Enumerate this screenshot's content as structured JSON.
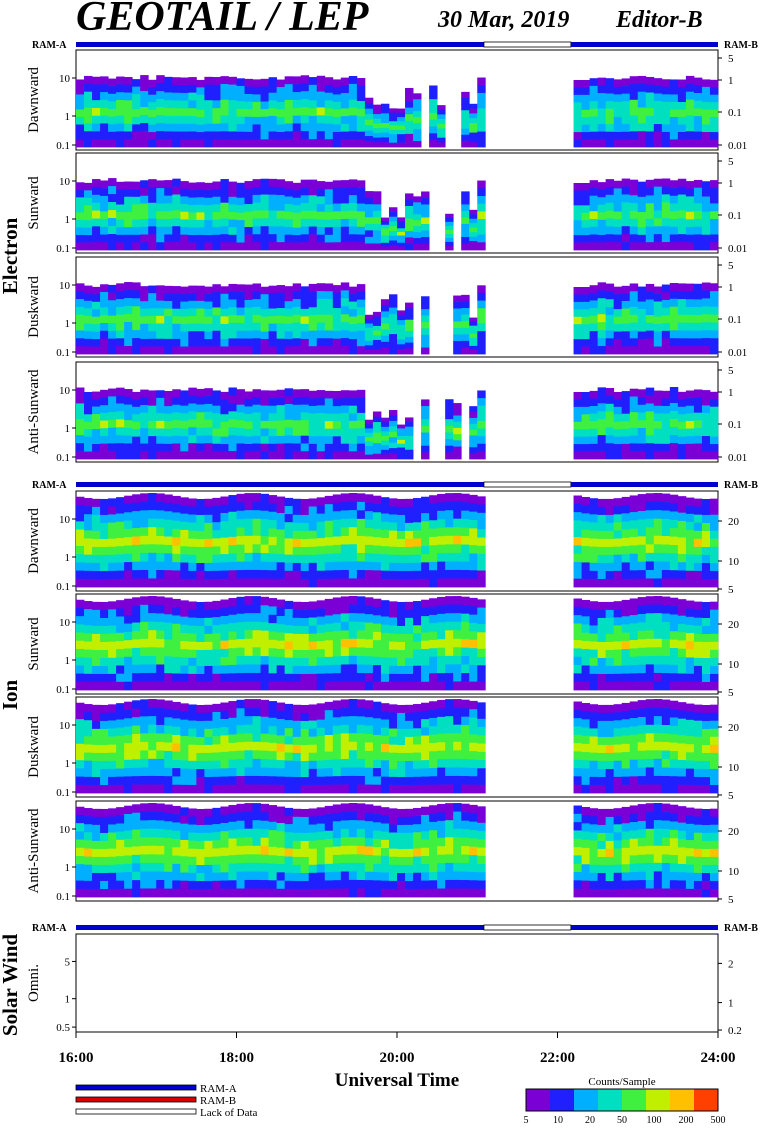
{
  "header": {
    "title": "GEOTAIL / LEP",
    "date": "30 Mar, 2019",
    "editor": "Editor-B"
  },
  "ram": {
    "left": "RAM-A",
    "right": "RAM-B"
  },
  "groups": {
    "electron": "Electron",
    "ion": "Ion",
    "solar": "Solar Wind"
  },
  "colors": {
    "ram_a": "#0000cc",
    "ram_b": "#dd0000",
    "spectro": [
      "#7a00d6",
      "#2020ff",
      "#00b0ff",
      "#00e0c0",
      "#40f040",
      "#c0f000",
      "#ffc000",
      "#ff4000"
    ]
  },
  "chart_data": {
    "type": "heatmap",
    "time_start": "16:00",
    "time_end": "24:00",
    "xlabel": "Universal Time",
    "x_ticks": [
      "16:00",
      "18:00",
      "20:00",
      "22:00",
      "24:00"
    ],
    "data_gap": [
      "21:05",
      "22:10"
    ],
    "panels": [
      {
        "group": "electron",
        "label": "Dawnward",
        "left_ticks": [
          "10",
          "1",
          "0.1"
        ],
        "right_ticks": [
          "5",
          "1",
          "0.1",
          "0.01"
        ]
      },
      {
        "group": "electron",
        "label": "Sunward",
        "left_ticks": [
          "10",
          "1",
          "0.1"
        ],
        "right_ticks": [
          "5",
          "1",
          "0.1",
          "0.01"
        ]
      },
      {
        "group": "electron",
        "label": "Duskward",
        "left_ticks": [
          "10",
          "1",
          "0.1"
        ],
        "right_ticks": [
          "5",
          "1",
          "0.1",
          "0.01"
        ]
      },
      {
        "group": "electron",
        "label": "Anti-Sunward",
        "left_ticks": [
          "10",
          "1",
          "0.1"
        ],
        "right_ticks": [
          "5",
          "1",
          "0.1",
          "0.01"
        ]
      },
      {
        "group": "ion",
        "label": "Dawnward",
        "left_ticks": [
          "10",
          "1",
          "0.1"
        ],
        "right_ticks": [
          "20",
          "10",
          "5"
        ]
      },
      {
        "group": "ion",
        "label": "Sunward",
        "left_ticks": [
          "10",
          "1",
          "0.1"
        ],
        "right_ticks": [
          "20",
          "10",
          "5"
        ]
      },
      {
        "group": "ion",
        "label": "Duskward",
        "left_ticks": [
          "10",
          "1",
          "0.1"
        ],
        "right_ticks": [
          "20",
          "10",
          "5"
        ]
      },
      {
        "group": "ion",
        "label": "Anti-Sunward",
        "left_ticks": [
          "10",
          "1",
          "0.1"
        ],
        "right_ticks": [
          "20",
          "10",
          "5"
        ]
      },
      {
        "group": "solar",
        "label": "Omni.",
        "left_ticks": [
          "5",
          "1",
          "0.5"
        ],
        "right_ticks": [
          "2",
          "1",
          "0.2"
        ]
      }
    ],
    "legend": [
      "RAM-A",
      "RAM-B",
      "Lack of Data"
    ],
    "colorbar": {
      "title": "Counts/Sample",
      "ticks": [
        "5",
        "10",
        "20",
        "50",
        "100",
        "200",
        "500"
      ]
    }
  }
}
